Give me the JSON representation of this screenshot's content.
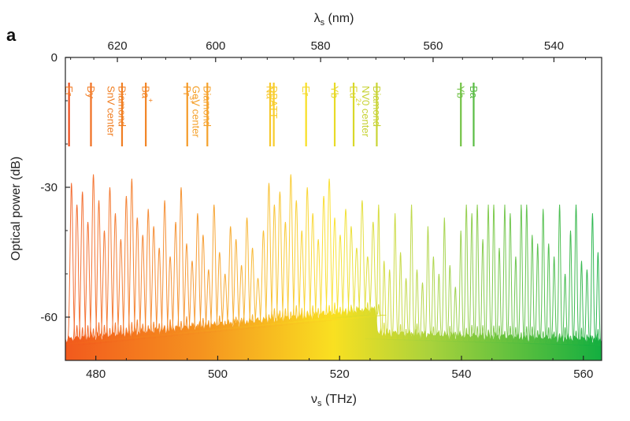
{
  "chart_data": {
    "type": "line",
    "panel_label": "a",
    "title": "",
    "xlabel": "ν",
    "xlabel_sub": "s",
    "xlabel_unit": " (THz)",
    "ylabel": "Optical power (dB)",
    "top_xlabel": "λ",
    "top_xlabel_sub": "s",
    "top_xlabel_unit": " (nm)",
    "xlim": [
      475,
      563
    ],
    "ylim": [
      -70,
      0
    ],
    "x_ticks": [
      480,
      500,
      520,
      540,
      560
    ],
    "x_tick_labels": [
      "480",
      "500",
      "520",
      "540",
      "560"
    ],
    "y_ticks": [
      0,
      -30,
      -60
    ],
    "y_tick_labels": [
      "0",
      "-30",
      "-60"
    ],
    "top_ticks_nm": [
      620,
      600,
      580,
      560,
      540
    ],
    "top_tick_labels": [
      "620",
      "600",
      "580",
      "560",
      "540"
    ],
    "grid": false,
    "colormap": [
      "#f25a1d",
      "#f5921f",
      "#f9e021",
      "#a9d23c",
      "#13ae40"
    ],
    "floor_db": -65,
    "noise_ramp_db": [
      -65,
      -58
    ],
    "transition_thz": 526,
    "series_spacing_thz": 0.9,
    "peak_pattern_db": [
      -29,
      -34,
      -31,
      -38,
      -27,
      -33,
      -40,
      -30,
      -36,
      -42,
      -32,
      -28,
      -37,
      -41,
      -35,
      -39,
      -44,
      -33,
      -46,
      -38,
      -30,
      -43,
      -47,
      -36,
      -41,
      -49,
      -34,
      -45,
      -50,
      -39,
      -42,
      -48,
      -37,
      -44,
      -51,
      -40
    ],
    "annotations": [
      {
        "label": "Er",
        "sup": "",
        "freq": 475.6,
        "line_color": "#ee4c1b",
        "text_color": "#f2802a"
      },
      {
        "label": "Dy",
        "sup": "",
        "freq": 479.2,
        "line_color": "#f06e20",
        "text_color": "#f2802a"
      },
      {
        "label": "Diamond",
        "line2": "SnV center",
        "sup": "",
        "freq": 484.3,
        "line_color": "#f07e22",
        "text_color": "#f07e22"
      },
      {
        "label": "Ba",
        "sup": "+",
        "freq": 488.2,
        "line_color": "#f28424",
        "text_color": "#f28424"
      },
      {
        "label": "Pr",
        "sup": "3+",
        "freq": 495.0,
        "line_color": "#f59a28",
        "text_color": "#f59a28"
      },
      {
        "label": "Diamond",
        "line2": "GeV center",
        "sup": "",
        "freq": 498.3,
        "line_color": "#f5a12a",
        "text_color": "#f5a12a"
      },
      {
        "label": "Na",
        "sup": "",
        "freq": 508.6,
        "line_color": "#f7c82c",
        "text_color": "#f7c82c"
      },
      {
        "label": "DBATT",
        "sup": "",
        "freq": 509.2,
        "line_color": "#f8cd2c",
        "text_color": "#f8cd2c"
      },
      {
        "label": "Er",
        "sup": "",
        "freq": 514.5,
        "line_color": "#f7df22",
        "text_color": "#f3d930"
      },
      {
        "label": "Yb",
        "sup": "",
        "freq": 519.2,
        "line_color": "#e8db27",
        "text_color": "#e6d82b"
      },
      {
        "label": "Eu",
        "sup": "2+",
        "freq": 522.3,
        "line_color": "#d9d82a",
        "text_color": "#d9d62c"
      },
      {
        "label": "Diamond",
        "line2": "NV0 center",
        "sup": "",
        "freq": 526.1,
        "line_color": "#c9d434",
        "text_color": "#c7d234"
      },
      {
        "label": "Yb",
        "sup": "",
        "freq": 539.9,
        "line_color": "#72c244",
        "text_color": "#70c244"
      },
      {
        "label": "Ba",
        "sup": "",
        "freq": 542.0,
        "line_color": "#5bbd44",
        "text_color": "#58bb44"
      }
    ]
  }
}
